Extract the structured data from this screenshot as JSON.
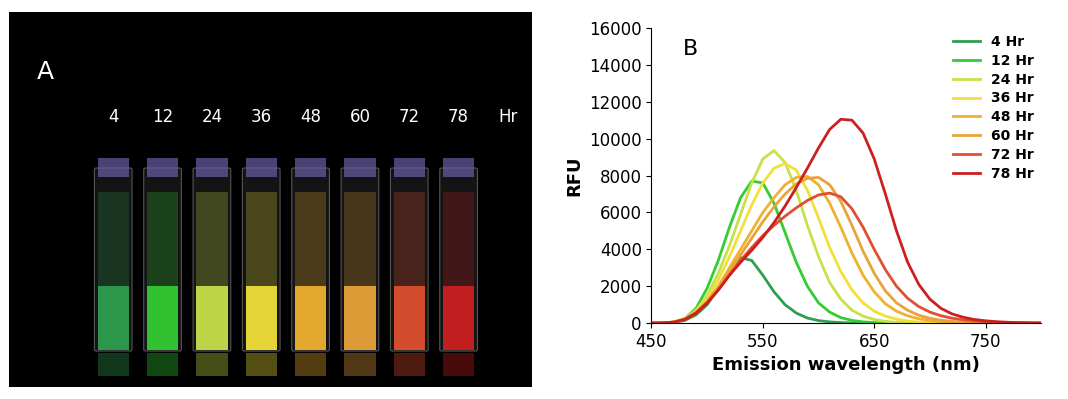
{
  "photo": {
    "label": "A",
    "labels": [
      "4",
      "12",
      "24",
      "36",
      "48",
      "60",
      "72",
      "78"
    ],
    "unit": "Hr"
  },
  "chart_data": {
    "type": "line",
    "label": "B",
    "x_label": "Emission wavelength (nm)",
    "y_label": "RFU",
    "x": [
      450,
      460,
      470,
      480,
      490,
      500,
      510,
      520,
      530,
      540,
      550,
      560,
      570,
      580,
      590,
      600,
      610,
      620,
      630,
      640,
      650,
      660,
      670,
      680,
      690,
      700,
      710,
      720,
      730,
      740,
      750,
      760,
      770,
      780,
      790,
      800
    ],
    "xlim": [
      450,
      800
    ],
    "xticks": [
      450,
      550,
      650,
      750
    ],
    "ylim": [
      0,
      16000
    ],
    "yticks": [
      0,
      2000,
      4000,
      6000,
      8000,
      10000,
      12000,
      14000,
      16000
    ],
    "grid": false,
    "legend": "upper right",
    "series": [
      {
        "name": "4 Hr",
        "color": "#2e9e4f",
        "values": [
          0,
          10,
          40,
          150,
          450,
          1000,
          1900,
          2900,
          3550,
          3400,
          2600,
          1700,
          1000,
          550,
          280,
          140,
          70,
          30,
          15,
          5,
          0,
          0,
          0,
          0,
          0,
          0,
          0,
          0,
          0,
          0,
          0,
          0,
          0,
          0,
          0,
          0
        ]
      },
      {
        "name": "12 Hr",
        "color": "#33cc33",
        "values": [
          0,
          15,
          60,
          250,
          800,
          1900,
          3400,
          5200,
          6800,
          7700,
          7600,
          6500,
          4900,
          3300,
          2000,
          1100,
          600,
          300,
          150,
          70,
          30,
          15,
          5,
          0,
          0,
          0,
          0,
          0,
          0,
          0,
          0,
          0,
          0,
          0,
          0,
          0
        ]
      },
      {
        "name": "24 Hr",
        "color": "#c8e04a",
        "values": [
          0,
          15,
          60,
          250,
          700,
          1500,
          2700,
          4200,
          5900,
          7600,
          8900,
          9350,
          8700,
          7200,
          5300,
          3600,
          2200,
          1300,
          700,
          380,
          200,
          100,
          50,
          25,
          10,
          0,
          0,
          0,
          0,
          0,
          0,
          0,
          0,
          0,
          0,
          0
        ]
      },
      {
        "name": "36 Hr",
        "color": "#f2e03a",
        "values": [
          0,
          15,
          60,
          230,
          650,
          1350,
          2350,
          3600,
          5000,
          6400,
          7600,
          8400,
          8650,
          8300,
          7200,
          5700,
          4100,
          2800,
          1800,
          1100,
          650,
          380,
          220,
          120,
          60,
          30,
          15,
          5,
          0,
          0,
          0,
          0,
          0,
          0,
          0,
          0
        ]
      },
      {
        "name": "48 Hr",
        "color": "#f0b030",
        "values": [
          0,
          15,
          60,
          220,
          600,
          1200,
          2000,
          3000,
          4000,
          5000,
          6000,
          6800,
          7500,
          7900,
          7950,
          7500,
          6500,
          5200,
          3800,
          2600,
          1700,
          1050,
          650,
          400,
          240,
          140,
          80,
          45,
          25,
          10,
          0,
          0,
          0,
          0,
          0,
          0
        ]
      },
      {
        "name": "60 Hr",
        "color": "#e8a33a",
        "values": [
          0,
          15,
          55,
          210,
          580,
          1150,
          1900,
          2800,
          3700,
          4600,
          5500,
          6300,
          7000,
          7550,
          7850,
          7900,
          7500,
          6600,
          5300,
          3900,
          2700,
          1750,
          1100,
          700,
          430,
          260,
          160,
          100,
          60,
          35,
          20,
          10,
          0,
          0,
          0,
          0
        ]
      },
      {
        "name": "72 Hr",
        "color": "#e05030",
        "values": [
          0,
          15,
          55,
          200,
          550,
          1100,
          1800,
          2600,
          3400,
          4100,
          4750,
          5300,
          5800,
          6250,
          6650,
          6950,
          7050,
          6850,
          6200,
          5200,
          4000,
          2900,
          2000,
          1350,
          900,
          600,
          400,
          270,
          180,
          120,
          80,
          50,
          30,
          20,
          10,
          5
        ]
      },
      {
        "name": "78 Hr",
        "color": "#cc2020",
        "values": [
          0,
          15,
          55,
          200,
          550,
          1100,
          1800,
          2600,
          3300,
          3950,
          4650,
          5450,
          6350,
          7350,
          8400,
          9500,
          10500,
          11050,
          11000,
          10300,
          8900,
          7000,
          5000,
          3300,
          2100,
          1300,
          800,
          500,
          320,
          200,
          130,
          80,
          50,
          30,
          15,
          5
        ]
      }
    ]
  }
}
